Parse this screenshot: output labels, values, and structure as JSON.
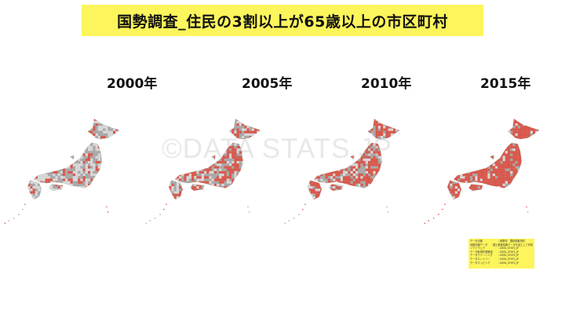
{
  "title": "国勢調査_住民の3割以上が65歳以上の市区町村",
  "watermark": "©DATA STATS JP",
  "maps": [
    {
      "year": "2000年",
      "red_share": 0.18
    },
    {
      "year": "2005年",
      "red_share": 0.42
    },
    {
      "year": "2010年",
      "red_share": 0.55
    },
    {
      "year": "2015年",
      "red_share": 0.8
    }
  ],
  "colors": {
    "highlight": "#d9574a",
    "base": "#bdbdbd",
    "title_bg": "#fdf55c"
  },
  "info": [
    {
      "k": "データ出典",
      "v": ": 総務省　国勢調査資料"
    },
    {
      "k": "地図情報データ",
      "v": ": 国土数値情報データを加工して作成"
    },
    {
      "k": "ソフトウェア",
      "v": ": DATA_STATS_JP"
    },
    {
      "k": "データ取得作業確認",
      "v": ": DATA_STATS_JP"
    },
    {
      "k": "データクリーニング",
      "v": ": DATA_STATS_JP"
    },
    {
      "k": "データエントリー",
      "v": ": DATA_STATS_JP"
    },
    {
      "k": "データマッピング",
      "v": ": DATA_STATS_JP"
    }
  ]
}
